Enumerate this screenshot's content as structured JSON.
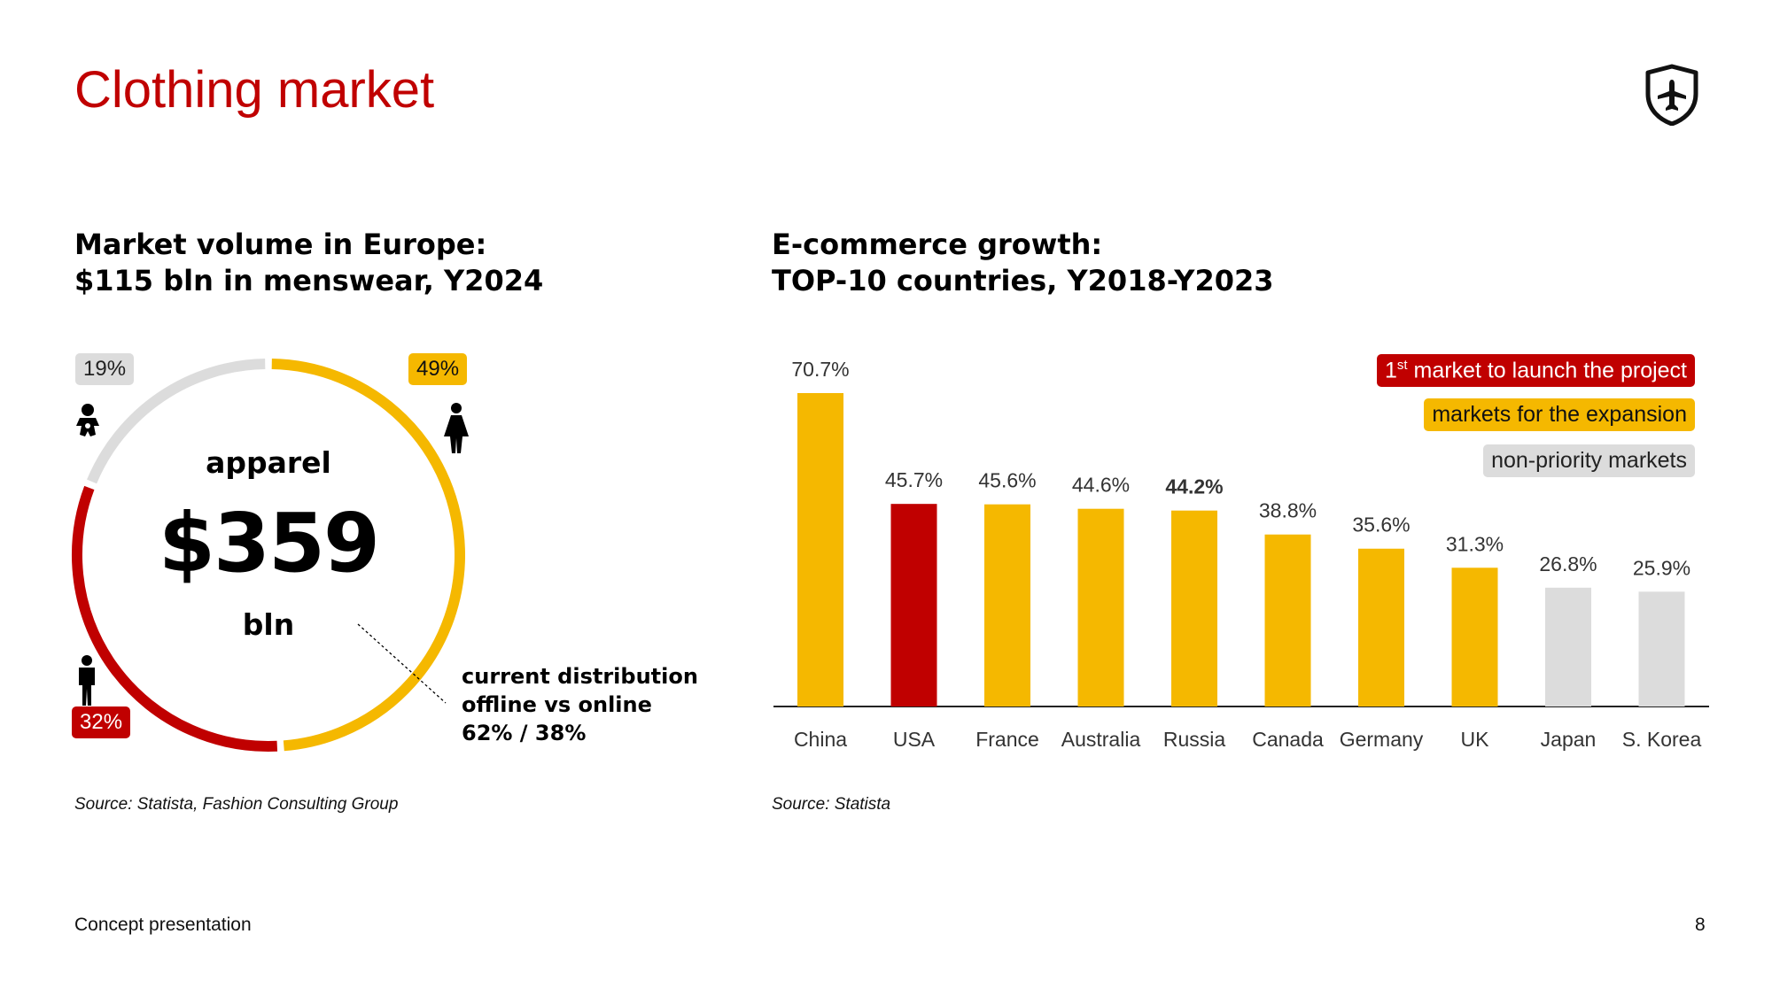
{
  "page": {
    "title": "Clothing market",
    "footer": "Concept presentation",
    "page_number": "8",
    "logo_icon": "shield-airplane-icon"
  },
  "left_panel": {
    "heading_line1": "Market volume in Europe:",
    "heading_line2": "$115 bln in menswear, Y2024",
    "center_label": "apparel",
    "center_value": "$359",
    "center_unit": "bln",
    "distribution_line1": "current distribution",
    "distribution_line2": "offline vs online",
    "distribution_line3": "62% / 38%",
    "source": "Source: Statista, Fashion Consulting Group",
    "segments": [
      {
        "name": "children",
        "label": "19%",
        "value": 19,
        "color": "#dcdcdc",
        "icon": "baby-icon"
      },
      {
        "name": "women",
        "label": "49%",
        "value": 49,
        "color": "#f5b800",
        "icon": "woman-icon"
      },
      {
        "name": "men",
        "label": "32%",
        "value": 32,
        "color": "#c00000",
        "icon": "man-icon"
      }
    ]
  },
  "right_panel": {
    "heading_line1": "E-commerce growth:",
    "heading_line2": "TOP-10 countries, Y2018-Y2023",
    "source": "Source: Statista",
    "legend": {
      "first_market_sup": "st",
      "first_market_num": "1",
      "first_market_text": "market to launch the project",
      "expansion": "markets for the expansion",
      "non_priority": "non-priority markets"
    }
  },
  "colors": {
    "red": "#c00000",
    "yellow": "#f5b800",
    "grey": "#dcdcdc"
  },
  "chart_data": [
    {
      "type": "pie",
      "title": "Market volume in Europe",
      "categories": [
        "children",
        "women",
        "men"
      ],
      "values": [
        19,
        49,
        32
      ],
      "labels": [
        "19%",
        "49%",
        "32%"
      ],
      "total": "$359 bln"
    },
    {
      "type": "bar",
      "title": "E-commerce growth: TOP-10 countries, Y2018-Y2023",
      "categories": [
        "China",
        "USA",
        "France",
        "Australia",
        "Russia",
        "Canada",
        "Germany",
        "UK",
        "Japan",
        "S. Korea"
      ],
      "values": [
        70.7,
        45.7,
        45.6,
        44.6,
        44.2,
        38.8,
        35.6,
        31.3,
        26.8,
        25.9
      ],
      "labels": [
        "70.7%",
        "45.7%",
        "45.6%",
        "44.6%",
        "44.2%",
        "38.8%",
        "35.6%",
        "31.3%",
        "26.8%",
        "25.9%"
      ],
      "groups": [
        "expansion",
        "first",
        "expansion",
        "expansion",
        "expansion",
        "expansion",
        "expansion",
        "expansion",
        "non-priority",
        "non-priority"
      ],
      "bold_label_index": 4,
      "ylim": [
        0,
        80
      ],
      "xlabel": "",
      "ylabel": ""
    }
  ]
}
